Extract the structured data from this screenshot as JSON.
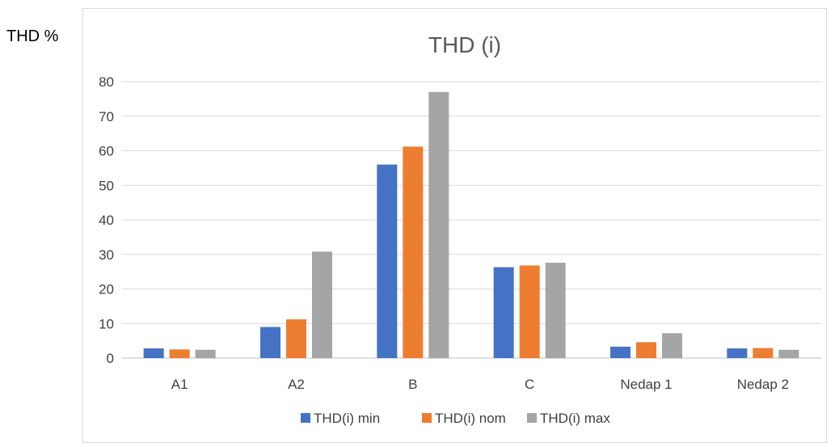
{
  "outer_ylabel": "THD %",
  "chart_data": {
    "type": "bar",
    "title": "THD (i)",
    "ylabel": "THD %",
    "xlabel": "",
    "categories": [
      "A1",
      "A2",
      "B",
      "C",
      "Nedap 1",
      "Nedap 2"
    ],
    "ylim": [
      0,
      80
    ],
    "yticks": [
      0,
      10,
      20,
      30,
      40,
      50,
      60,
      70,
      80
    ],
    "grid": true,
    "legend": "bottom",
    "series": [
      {
        "name": "THD(i) min",
        "color": "#4472c4",
        "values": [
          2.8,
          9.0,
          56.0,
          26.3,
          3.3,
          2.8
        ]
      },
      {
        "name": "THD(i) nom",
        "color": "#ed7d31",
        "values": [
          2.5,
          11.2,
          61.2,
          26.8,
          4.6,
          2.9
        ]
      },
      {
        "name": "THD(i) max",
        "color": "#a5a5a5",
        "values": [
          2.4,
          30.8,
          77.0,
          27.6,
          7.2,
          2.4
        ]
      }
    ]
  }
}
